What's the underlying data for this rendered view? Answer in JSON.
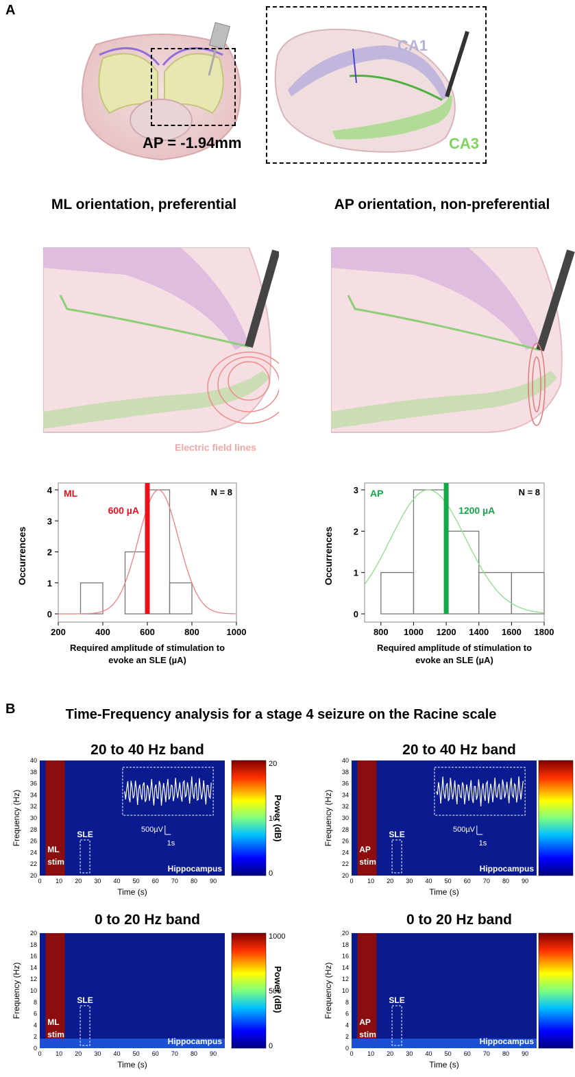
{
  "panel_a": {
    "letter": "A",
    "brain_label": "AP = -1.94mm",
    "ca1_label": "CA1",
    "ca3_label": "CA3",
    "left_title": "ML orientation, preferential",
    "right_title": "AP orientation, non-preferential",
    "field_lines_label": "Electric field lines"
  },
  "panel_b": {
    "letter": "B",
    "title": "Time-Frequency analysis for a stage 4 seizure on the Racine scale",
    "high_band_title": "20 to 40 Hz band",
    "low_band_title": "0 to 20 Hz band",
    "power_label": "Power (dB)",
    "freq_label": "Frequency (Hz)",
    "time_label": "Time (s)",
    "sle_label": "SLE",
    "region_label": "Hippocampus",
    "scale_v": "500µV",
    "scale_t": "1s",
    "ml_stim": [
      "ML",
      "stim"
    ],
    "ap_stim": [
      "AP",
      "stim"
    ],
    "high_colorbar_ticks": [
      "20",
      "10",
      "0"
    ],
    "low_colorbar_ticks": [
      "1000",
      "500",
      "0"
    ],
    "high_freq_ticks": [
      "40",
      "38",
      "36",
      "34",
      "32",
      "30",
      "28",
      "26",
      "24",
      "22",
      "20"
    ],
    "low_freq_ticks": [
      "20",
      "18",
      "16",
      "14",
      "12",
      "10",
      "8",
      "6",
      "4",
      "2",
      "0"
    ],
    "time_ticks": [
      "0",
      "10",
      "20",
      "30",
      "40",
      "50",
      "60",
      "70",
      "80",
      "90"
    ]
  },
  "chart_data": [
    {
      "type": "bar",
      "name_label": "ML",
      "n_label": "N = 8",
      "threshold_label": "600 µA",
      "threshold": 600,
      "threshold_color": "#e8111b",
      "fit_color": "#f08080",
      "bins": [
        [
          300,
          400
        ],
        [
          400,
          500
        ],
        [
          500,
          600
        ],
        [
          600,
          700
        ],
        [
          700,
          800
        ]
      ],
      "values": [
        1,
        0,
        2,
        4,
        1
      ],
      "fit_mean": 650,
      "fit_sd": 90,
      "fit_peak": 4,
      "xlim": [
        200,
        1000
      ],
      "ylim": [
        0,
        4
      ],
      "xticks": [
        200,
        400,
        600,
        800,
        1000
      ],
      "yticks": [
        0,
        1,
        2,
        3,
        4
      ],
      "ylabel": "Occurrences",
      "xlabel": "Required amplitude of stimulation to evoke an SLE (µA)"
    },
    {
      "type": "bar",
      "name_label": "AP",
      "n_label": "N = 8",
      "threshold_label": "1200 µA",
      "threshold": 1200,
      "threshold_color": "#12a84a",
      "fit_color": "#8fdc8f",
      "bins": [
        [
          800,
          1000
        ],
        [
          1000,
          1200
        ],
        [
          1200,
          1400
        ],
        [
          1400,
          1600
        ],
        [
          1600,
          1800
        ]
      ],
      "values": [
        1,
        3,
        2,
        1,
        1
      ],
      "fit_mean": 1090,
      "fit_sd": 230,
      "fit_peak": 3,
      "xlim": [
        700,
        1800
      ],
      "ylim": [
        0,
        3
      ],
      "xticks": [
        800,
        1000,
        1200,
        1400,
        1600,
        1800
      ],
      "yticks": [
        0,
        1,
        2,
        3
      ],
      "ylabel": "Occurrences",
      "xlabel": "Required amplitude of stimulation to evoke an SLE (µA)"
    }
  ]
}
